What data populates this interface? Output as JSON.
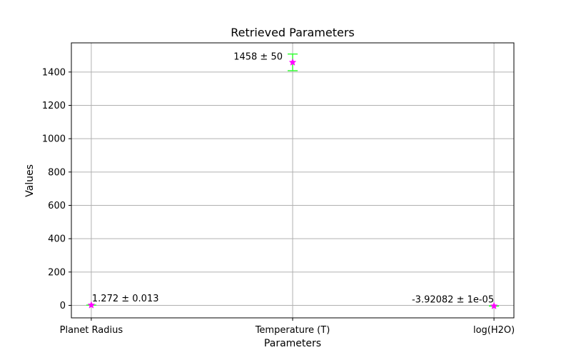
{
  "chart_data": {
    "type": "scatter",
    "title": "Retrieved Parameters",
    "xlabel": "Parameters",
    "ylabel": "Values",
    "categories": [
      "Planet Radius",
      "Temperature (T)",
      "log(H2O)"
    ],
    "values": [
      1.272,
      1458,
      -3.92082
    ],
    "errors": [
      0.013,
      50,
      1e-05
    ],
    "annotations": [
      "1.272 ± 0.013",
      "1458 ± 50",
      "-3.92082 ± 1e-05"
    ],
    "yticks": [
      0,
      200,
      400,
      600,
      800,
      1000,
      1200,
      1400
    ],
    "ylim": [
      -75,
      1575
    ],
    "grid": true,
    "legend": "none",
    "marker": "star",
    "colors": {
      "marker": "#ff00ff",
      "errorbar": "#33ff33",
      "grid": "#b0b0b0",
      "axis": "#000000"
    }
  }
}
